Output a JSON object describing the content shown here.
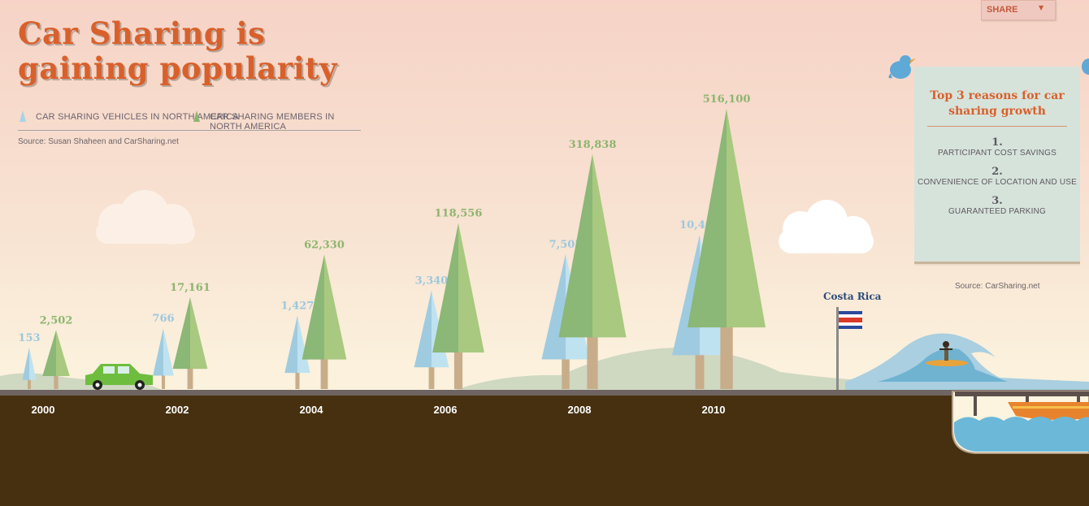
{
  "title": "Car Sharing is gaining popularity",
  "share": {
    "label": "SHARE",
    "caret": "▼"
  },
  "legend": [
    {
      "label": "CAR SHARING VEHICLES IN NORTH AMERICA",
      "color": "#a7d3e6"
    },
    {
      "label": "CAR SHARING MEMBERS IN NORTH AMERICA",
      "color": "#8db56f"
    }
  ],
  "source_left": "Source: Susan Shaheen and CarSharing.net",
  "panel": {
    "title": "Top 3 reasons for car sharing growth",
    "reasons": [
      {
        "num": "1.",
        "text": "PARTICIPANT COST SAVINGS"
      },
      {
        "num": "2.",
        "text": "CONVENIENCE OF LOCATION AND USE"
      },
      {
        "num": "3.",
        "text": "GUARANTEED PARKING"
      }
    ]
  },
  "source_right": "Source: CarSharing.net",
  "flag_label": "Costa Rica",
  "icons": [
    "bird-icon",
    "car-icon",
    "cloud-icon",
    "flag-icon",
    "surfer-icon",
    "boat-icon",
    "wave-icon"
  ],
  "colors": {
    "title": "#d9602b",
    "vehicles": "#a7d3e6",
    "members": "#8db56f",
    "trunk": "#c8ad8a",
    "ground": "#46300f",
    "road": "#6e6461"
  },
  "chart_data": {
    "type": "bar",
    "categories": [
      "2000",
      "2002",
      "2004",
      "2006",
      "2008",
      "2010"
    ],
    "series": [
      {
        "name": "CAR SHARING VEHICLES IN NORTH AMERICA",
        "points": [
          {
            "year": 2000,
            "value": 153,
            "label": "153"
          },
          {
            "year": 2002,
            "value": 766,
            "label": "766"
          },
          {
            "year": 2004,
            "value": 1427,
            "label": "1,427"
          },
          {
            "year": 2006,
            "value": 3340,
            "label": "3,340"
          },
          {
            "year": 2008,
            "value": 7505,
            "label": "7,505"
          },
          {
            "year": 2010,
            "value": 10405,
            "label": "10,405"
          }
        ]
      },
      {
        "name": "CAR SHARING MEMBERS IN NORTH AMERICA",
        "points": [
          {
            "year": 2000,
            "value": 2502,
            "label": "2,502"
          },
          {
            "year": 2002,
            "value": 17161,
            "label": "17,161"
          },
          {
            "year": 2004,
            "value": 62330,
            "label": "62,330"
          },
          {
            "year": 2006,
            "value": 118556,
            "label": "118,556"
          },
          {
            "year": 2008,
            "value": 318838,
            "label": "318,838"
          },
          {
            "year": 2010,
            "value": 516100,
            "label": "516,100"
          }
        ]
      }
    ]
  }
}
